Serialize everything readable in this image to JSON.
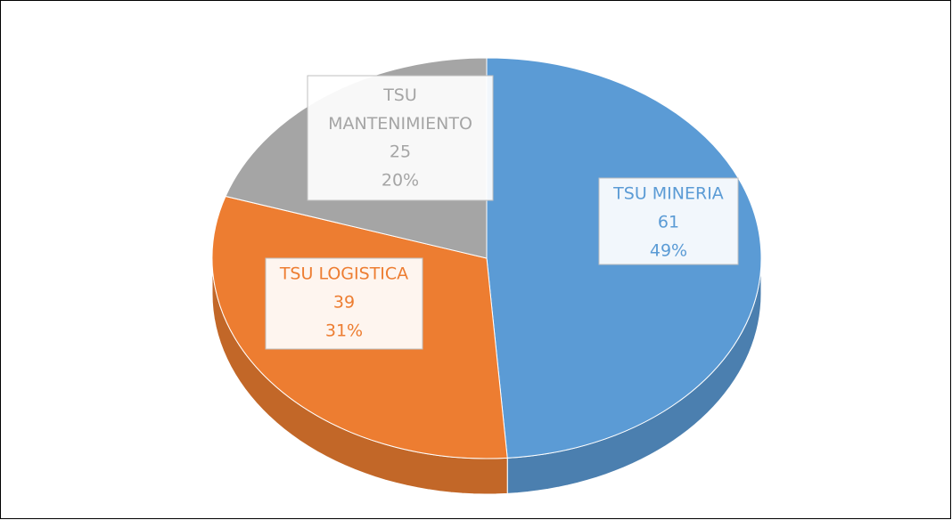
{
  "chart_data": {
    "type": "pie",
    "categories": [
      "TSU MINERIA",
      "TSU LOGISTICA",
      "TSU MANTENIMIENTO"
    ],
    "values": [
      61,
      39,
      25
    ],
    "percent_labels": [
      "49%",
      "31%",
      "20%"
    ],
    "colors": [
      "#5b9bd5",
      "#ed7d31",
      "#a5a5a5"
    ],
    "label_colors": [
      "#5b9bd5",
      "#ed7d31",
      "#a5a5a5"
    ]
  }
}
